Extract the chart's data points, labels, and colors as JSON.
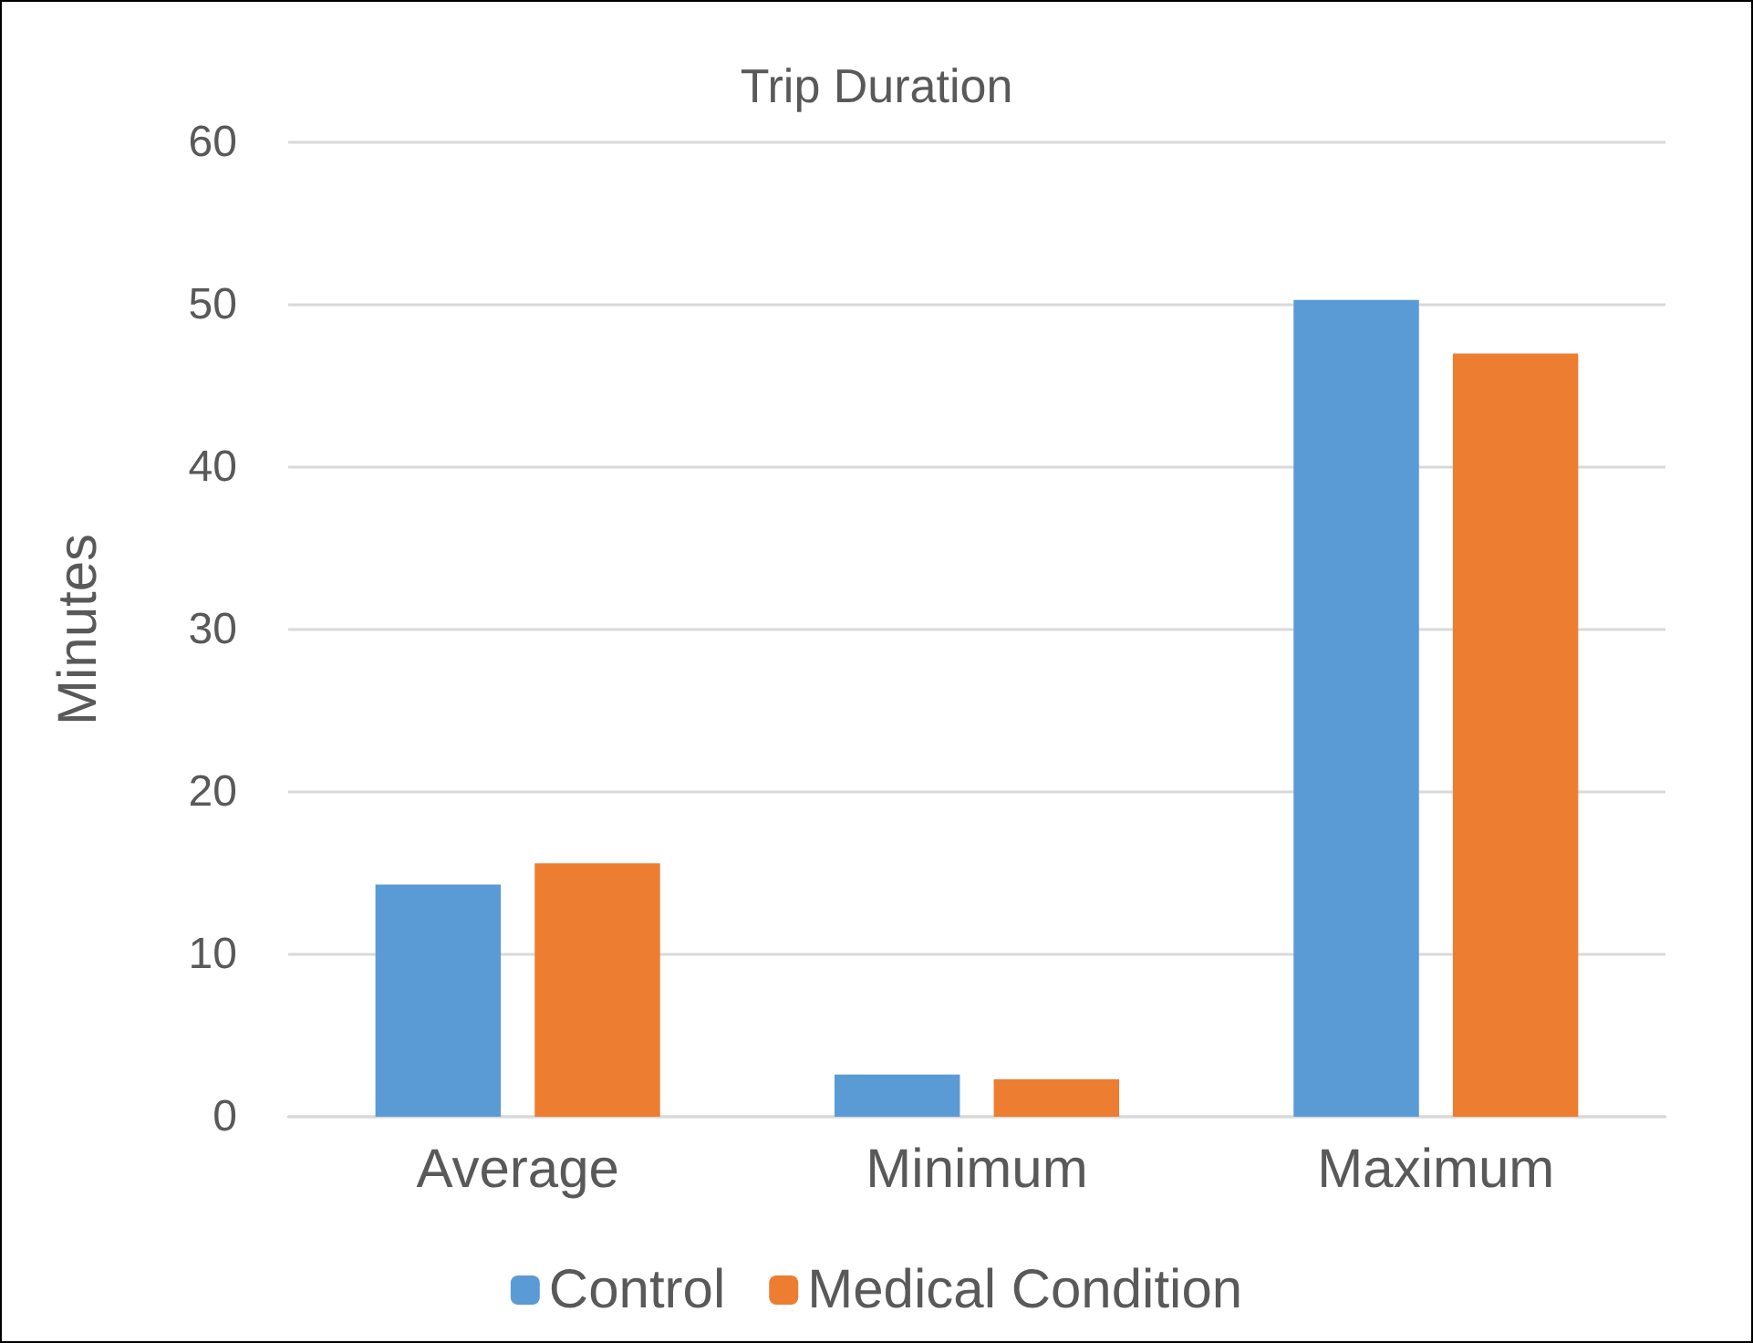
{
  "chart_data": {
    "type": "bar",
    "title": "Trip Duration",
    "ylabel": "Minutes",
    "categories": [
      "Average",
      "Minimum",
      "Maximum"
    ],
    "series": [
      {
        "name": "Control",
        "color": "#5b9bd5",
        "values": [
          14.3,
          2.6,
          50.3
        ]
      },
      {
        "name": "Medical Condition",
        "color": "#ed7d31",
        "values": [
          15.6,
          2.3,
          47.0
        ]
      }
    ],
    "ylim": [
      0,
      60
    ],
    "yticks": [
      0,
      10,
      20,
      30,
      40,
      50,
      60
    ],
    "grid": "y",
    "legend": "bottom"
  }
}
